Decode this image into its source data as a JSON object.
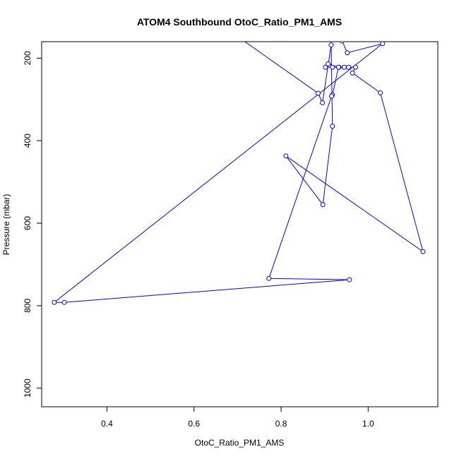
{
  "chart_data": {
    "type": "line",
    "title": "ATOM4 Southbound OtoC_Ratio_PM1_AMS",
    "xlabel": "OtoC_Ratio_PM1_AMS",
    "ylabel": "Pressure (mbar)",
    "xlim": [
      0.25,
      1.16
    ],
    "ylim": [
      1045,
      160
    ],
    "y_reversed": true,
    "x_ticks": [
      0.4,
      0.6,
      0.8,
      1.0
    ],
    "x_tick_labels": [
      "0.4",
      "0.6",
      "0.8",
      "1.0"
    ],
    "y_ticks": [
      200,
      400,
      600,
      800,
      1000
    ],
    "y_tick_labels": [
      "200",
      "400",
      "600",
      "800",
      "1000"
    ],
    "series_color": "#0000ff",
    "grid": false,
    "legend": "none",
    "series": [
      {
        "points": [
          {
            "x": 0.71,
            "y": 155
          },
          {
            "x": 0.885,
            "y": 285
          },
          {
            "x": 0.895,
            "y": 308
          },
          {
            "x": 0.915,
            "y": 168
          },
          {
            "x": 0.918,
            "y": 365
          },
          {
            "x": 0.896,
            "y": 555
          },
          {
            "x": 0.811,
            "y": 437
          },
          {
            "x": 1.126,
            "y": 669
          },
          {
            "x": 1.028,
            "y": 284
          },
          {
            "x": 0.964,
            "y": 236
          },
          {
            "x": 0.971,
            "y": 222
          },
          {
            "x": 0.955,
            "y": 222
          },
          {
            "x": 0.945,
            "y": 222
          },
          {
            "x": 0.933,
            "y": 222
          },
          {
            "x": 0.918,
            "y": 222
          },
          {
            "x": 0.902,
            "y": 222
          },
          {
            "x": 0.908,
            "y": 214
          },
          {
            "x": 0.932,
            "y": 222
          },
          {
            "x": 0.918,
            "y": 289
          },
          {
            "x": 0.916,
            "y": 292
          },
          {
            "x": 0.772,
            "y": 734
          },
          {
            "x": 0.957,
            "y": 737
          },
          {
            "x": 0.302,
            "y": 792
          },
          {
            "x": 0.279,
            "y": 792
          },
          {
            "x": 1.033,
            "y": 165
          },
          {
            "x": 0.952,
            "y": 187
          },
          {
            "x": 0.94,
            "y": 158
          },
          {
            "x": 0.8,
            "y": 155
          }
        ]
      }
    ]
  }
}
